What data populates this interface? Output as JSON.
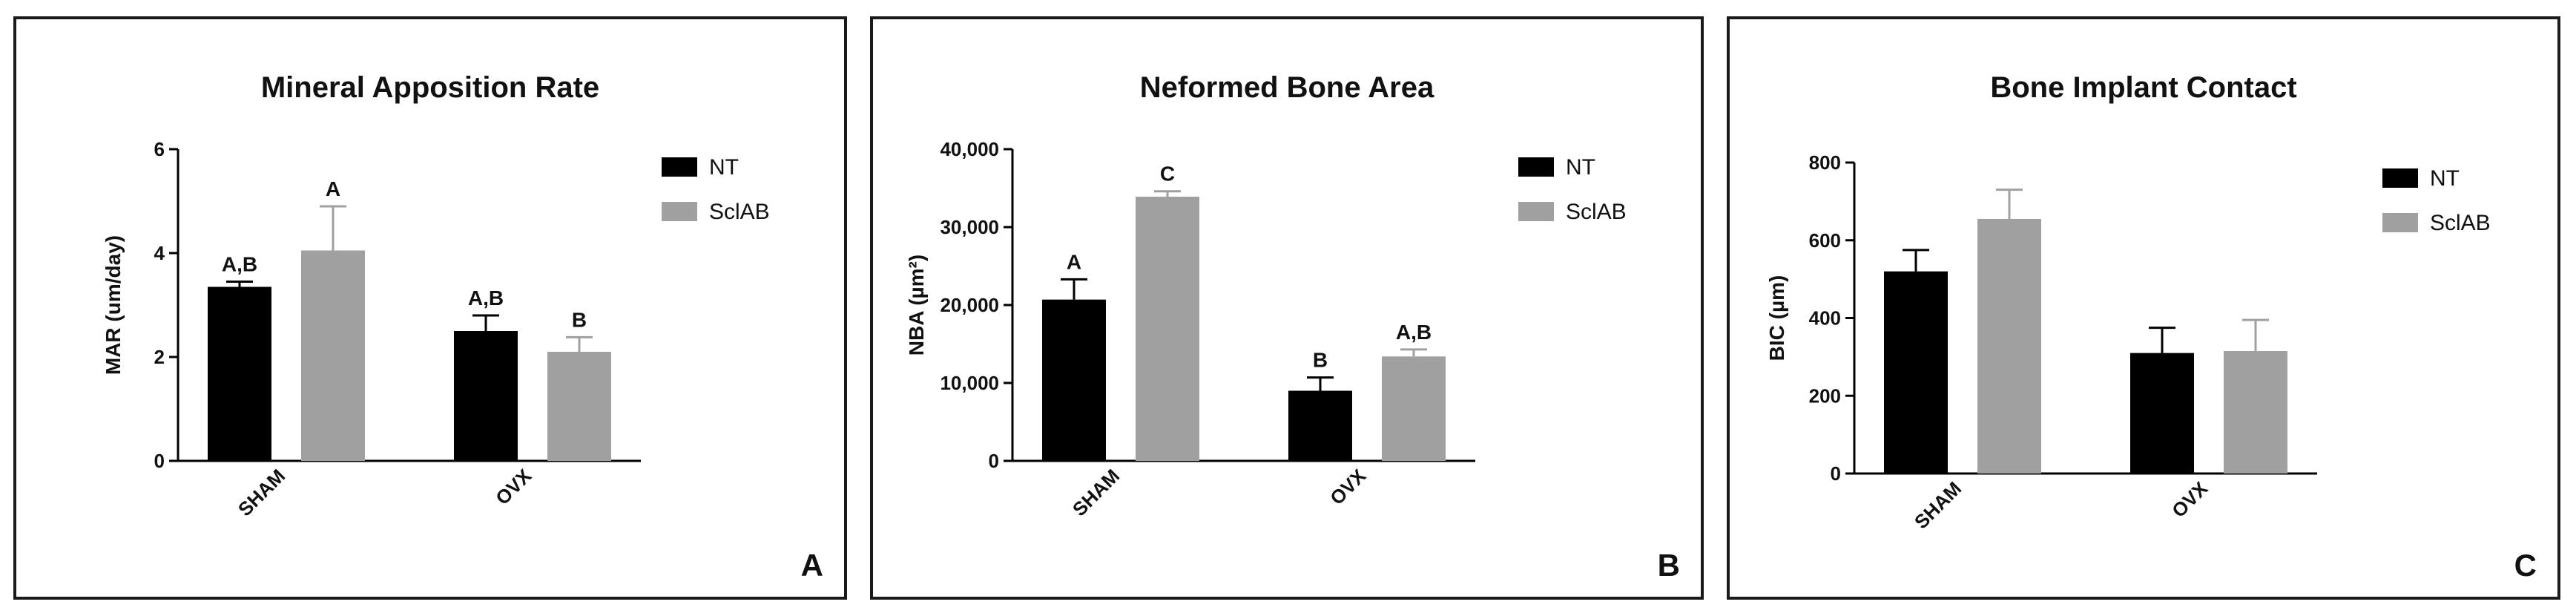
{
  "colors": {
    "NT": "#000000",
    "SclAB": "#a0a0a0",
    "axis": "#000000"
  },
  "chart_data": [
    {
      "type": "bar",
      "title": "Mineral Apposition Rate",
      "ylabel": "MAR (um/day)",
      "xlabel": "",
      "panel_letter": "A",
      "categories": [
        "SHAM",
        "OVX"
      ],
      "ylim": [
        0,
        6
      ],
      "yticks": [
        0,
        2,
        4,
        6
      ],
      "ytick_labels": [
        "0",
        "2",
        "4",
        "6"
      ],
      "legend": "right",
      "series": [
        {
          "name": "NT",
          "values": [
            3.35,
            2.5
          ],
          "errors": [
            0.1,
            0.3
          ],
          "labels": [
            "A,B",
            "A,B"
          ]
        },
        {
          "name": "SclAB",
          "values": [
            4.05,
            2.1
          ],
          "errors": [
            0.85,
            0.28
          ],
          "labels": [
            "A",
            "B"
          ]
        }
      ]
    },
    {
      "type": "bar",
      "title": "Neformed Bone Area",
      "ylabel": "NBA (µm²)",
      "xlabel": "",
      "panel_letter": "B",
      "categories": [
        "SHAM",
        "OVX"
      ],
      "ylim": [
        0,
        40000
      ],
      "yticks": [
        0,
        10000,
        20000,
        30000,
        40000
      ],
      "ytick_labels": [
        "0",
        "10,000",
        "20,000",
        "30,000",
        "40,000"
      ],
      "legend": "right",
      "series": [
        {
          "name": "NT",
          "values": [
            20700,
            9000
          ],
          "errors": [
            2600,
            1700
          ],
          "labels": [
            "A",
            "B"
          ]
        },
        {
          "name": "SclAB",
          "values": [
            33900,
            13400
          ],
          "errors": [
            700,
            900
          ],
          "labels": [
            "C",
            "A,B"
          ]
        }
      ]
    },
    {
      "type": "bar",
      "title": "Bone Implant Contact",
      "ylabel": "BIC (µm)",
      "xlabel": "",
      "panel_letter": "C",
      "categories": [
        "SHAM",
        "OVX"
      ],
      "ylim": [
        0,
        800
      ],
      "yticks": [
        0,
        200,
        400,
        600,
        800
      ],
      "ytick_labels": [
        "0",
        "200",
        "400",
        "600",
        "800"
      ],
      "legend": "right",
      "series": [
        {
          "name": "NT",
          "values": [
            520,
            310
          ],
          "errors": [
            55,
            65
          ],
          "labels": [
            "",
            ""
          ]
        },
        {
          "name": "SclAB",
          "values": [
            655,
            315
          ],
          "errors": [
            75,
            80
          ],
          "labels": [
            "",
            ""
          ]
        }
      ]
    }
  ]
}
